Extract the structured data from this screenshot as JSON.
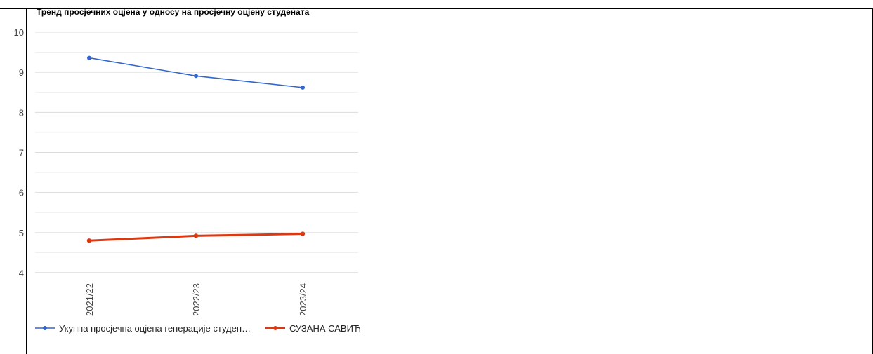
{
  "chart_data": {
    "type": "line",
    "title": "Тренд просјечних оцјена у односу на просјечну оцјену студената",
    "categories": [
      "2021/22",
      "2022/23",
      "2023/24"
    ],
    "series": [
      {
        "name": "Укупна просјечна оцјена генерације студен…",
        "values": [
          9.36,
          8.91,
          8.62
        ],
        "color": "#3366cc"
      },
      {
        "name": "СУЗАНА САВИЋ",
        "values": [
          4.8,
          4.92,
          4.97
        ],
        "color": "#dc3912"
      }
    ],
    "yticks": [
      "10",
      "9",
      "8",
      "7",
      "6",
      "5",
      "4"
    ],
    "ylim": [
      4,
      10
    ],
    "grid": true,
    "legend_position": "bottom"
  }
}
